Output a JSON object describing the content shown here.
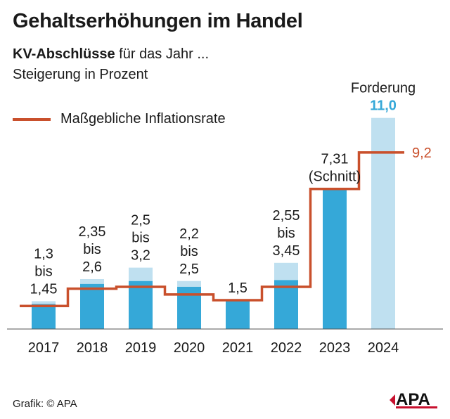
{
  "title": "Gehaltserhöhungen im Handel",
  "subtitle_bold": "KV-Abschlüsse",
  "subtitle_rest": " für das Jahr ...",
  "subtitle2": "Steigerung in Prozent",
  "legend_label": "Maßgebliche Inflationsrate",
  "source": "Grafik: © APA",
  "logo_text": "APA",
  "colors": {
    "bar_low": "#35a8d8",
    "bar_high": "#bfe0f0",
    "inflation_line": "#c9502c",
    "forderung_value": "#35a8d8"
  },
  "chart_data": {
    "type": "bar",
    "categories": [
      "2017",
      "2018",
      "2019",
      "2020",
      "2021",
      "2022",
      "2023",
      "2024"
    ],
    "ranges": [
      {
        "low": 1.3,
        "high": 1.45,
        "label_lines": [
          "1,3",
          "bis",
          "1,45"
        ]
      },
      {
        "low": 2.35,
        "high": 2.6,
        "label_lines": [
          "2,35",
          "bis",
          "2,6"
        ]
      },
      {
        "low": 2.5,
        "high": 3.2,
        "label_lines": [
          "2,5",
          "bis",
          "3,2"
        ]
      },
      {
        "low": 2.2,
        "high": 2.5,
        "label_lines": [
          "2,2",
          "bis",
          "2,5"
        ]
      },
      {
        "low": 1.5,
        "high": 1.5,
        "label_lines": [
          "1,5"
        ]
      },
      {
        "low": 2.55,
        "high": 3.45,
        "label_lines": [
          "2,55",
          "bis",
          "3,45"
        ]
      },
      {
        "low": 7.31,
        "high": 7.31,
        "label_lines": [
          "7,31",
          "(Schnitt)"
        ]
      },
      {
        "low": 0,
        "high": 11.0,
        "label_lines": [
          "Forderung",
          "11,0"
        ]
      }
    ],
    "inflation": [
      1.2,
      2.1,
      2.2,
      1.8,
      1.5,
      2.2,
      7.3,
      9.2
    ],
    "inflation_end_label": "9,2",
    "ylim": [
      0,
      12
    ]
  }
}
